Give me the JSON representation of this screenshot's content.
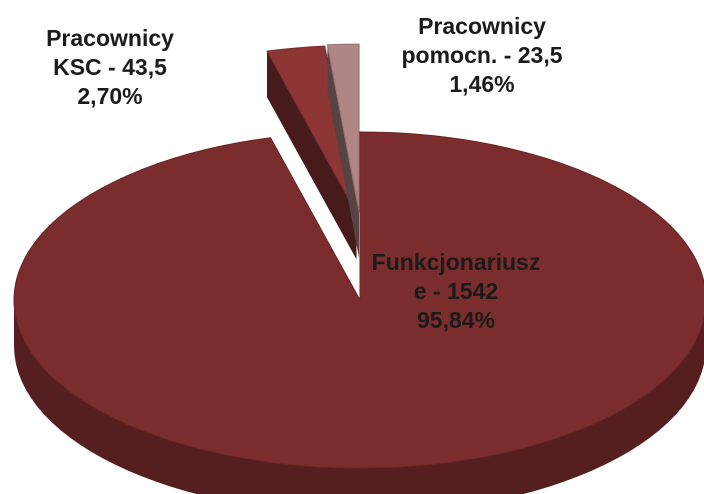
{
  "chart_data": {
    "type": "pie",
    "categories": [
      "Funkcjonariusze",
      "Pracownicy KSC",
      "Pracownicy pomocn."
    ],
    "values": [
      1542,
      43.5,
      23.5
    ],
    "value_labels": [
      "1542",
      "43,5",
      "23,5"
    ],
    "label_separator": " - ",
    "percent": [
      95.84,
      2.7,
      1.46
    ],
    "percent_labels": [
      "95,84%",
      "2,70%",
      "1,46%"
    ],
    "colors": [
      "#7b2d2d",
      "#8e3535",
      "#b08585"
    ]
  }
}
